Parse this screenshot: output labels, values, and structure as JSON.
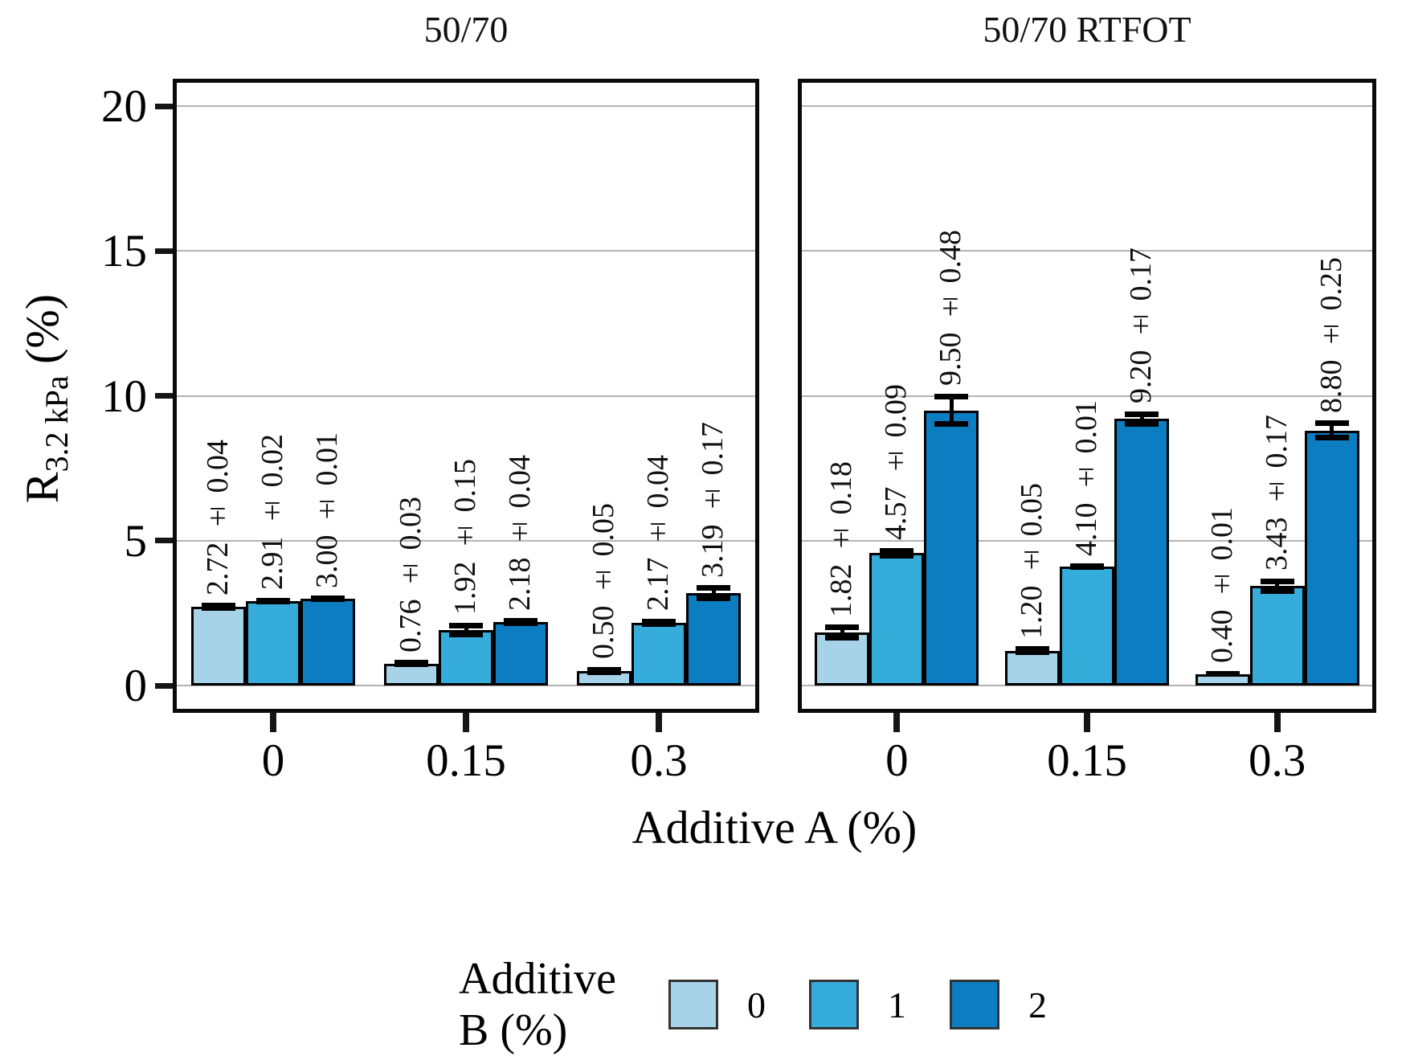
{
  "chart_data": {
    "type": "bar",
    "xlabel": "Additive A (%)",
    "ylabel": "R_{3.2 kPa} (%)",
    "ylabel_parts": {
      "base": "R",
      "subscript": "3.2 kPa",
      "suffix": " (%)"
    },
    "ylim": [
      0,
      20.8
    ],
    "yticks": [
      0,
      5,
      10,
      15,
      20
    ],
    "grid": "horizontal",
    "bar_label_format": "{value} ± {error}",
    "categories": [
      "0",
      "0.15",
      "0.3"
    ],
    "facets": [
      {
        "title": "50/70",
        "categories": [
          "0",
          "0.15",
          "0.3"
        ],
        "series": [
          {
            "name": "0",
            "color": "#a7d3e8",
            "values": [
              2.72,
              0.76,
              0.5
            ],
            "errors": [
              0.04,
              0.03,
              0.05
            ]
          },
          {
            "name": "1",
            "color": "#35acda",
            "values": [
              2.91,
              1.92,
              2.17
            ],
            "errors": [
              0.02,
              0.15,
              0.04
            ]
          },
          {
            "name": "2",
            "color": "#0d7dc1",
            "values": [
              3.0,
              2.18,
              3.19
            ],
            "errors": [
              0.01,
              0.04,
              0.17
            ]
          }
        ]
      },
      {
        "title": "50/70 RTFOT",
        "categories": [
          "0",
          "0.15",
          "0.3"
        ],
        "series": [
          {
            "name": "0",
            "color": "#a7d3e8",
            "values": [
              1.82,
              1.2,
              0.4
            ],
            "errors": [
              0.18,
              0.05,
              0.01
            ]
          },
          {
            "name": "1",
            "color": "#35acda",
            "values": [
              4.57,
              4.1,
              3.43
            ],
            "errors": [
              0.09,
              0.01,
              0.17
            ]
          },
          {
            "name": "2",
            "color": "#0d7dc1",
            "values": [
              9.5,
              9.2,
              8.8
            ],
            "errors": [
              0.48,
              0.17,
              0.25
            ]
          }
        ]
      }
    ],
    "legend": {
      "title": "Additive B (%)",
      "position": "bottom",
      "entries": [
        {
          "label": "0",
          "color": "#a7d3e8"
        },
        {
          "label": "1",
          "color": "#35acda"
        },
        {
          "label": "2",
          "color": "#0d7dc1"
        }
      ]
    },
    "colors": {
      "bar_outline": "#000000",
      "gridline": "#b3b3b3",
      "panel_border": "#0a0a0a",
      "text": "#101010"
    }
  }
}
